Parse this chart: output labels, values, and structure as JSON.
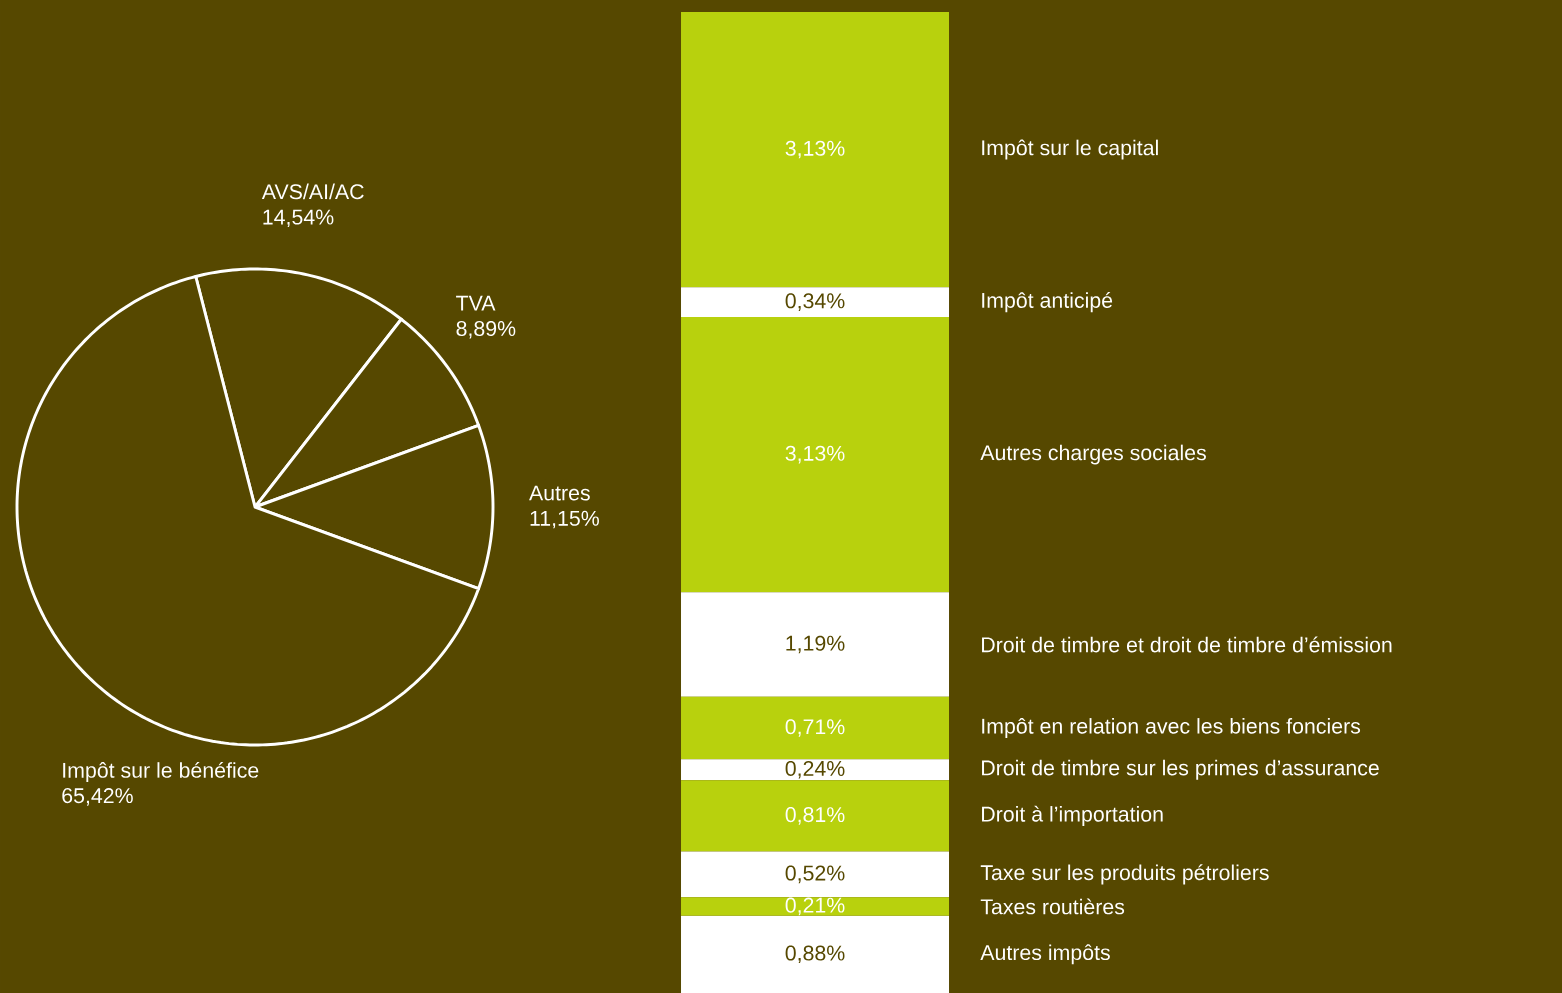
{
  "chart_data": [
    {
      "type": "pie",
      "categories": [
        "AVS/AI/AC",
        "TVA",
        "Autres",
        "Impôt sur le bénéfice"
      ],
      "values": [
        14.54,
        8.89,
        11.15,
        65.42
      ],
      "value_labels": [
        "14,54%",
        "8,89%",
        "11,15%",
        "65,42%"
      ],
      "colors": [
        "#564800",
        "#564800",
        "#564800",
        "#564800"
      ]
    },
    {
      "type": "bar",
      "stacked": true,
      "categories": [
        null
      ],
      "series": [
        {
          "name": "Autres impôts",
          "color": "#ffffff",
          "values": [
            0.88
          ],
          "value_labels": [
            "0,88%"
          ]
        },
        {
          "name": "Taxes routières",
          "color": "#b8d10d",
          "values": [
            0.21
          ],
          "value_labels": [
            "0,21%"
          ]
        },
        {
          "name": "Taxe sur les produits pétroliers",
          "color": "#ffffff",
          "values": [
            0.52
          ],
          "value_labels": [
            "0,52%"
          ]
        },
        {
          "name": "Droit à l’importation",
          "color": "#b8d10d",
          "values": [
            0.81
          ],
          "value_labels": [
            "0,81%"
          ]
        },
        {
          "name": "Droit de timbre sur les primes d’assurance",
          "color": "#ffffff",
          "values": [
            0.24
          ],
          "value_labels": [
            "0,24%"
          ]
        },
        {
          "name": "Impôt en relation avec les biens fonciers",
          "color": "#b8d10d",
          "values": [
            0.71
          ],
          "value_labels": [
            "0,71%"
          ]
        },
        {
          "name": "Droit de timbre et droit de timbre d’émission",
          "color": "#ffffff",
          "values": [
            1.19
          ],
          "value_labels": [
            "1,19%"
          ]
        },
        {
          "name": "Autres charges sociales",
          "color": "#b8d10d",
          "values": [
            3.13
          ],
          "value_labels": [
            "3,13%"
          ]
        },
        {
          "name": "Impôt anticipé",
          "color": "#ffffff",
          "values": [
            0.34
          ],
          "value_labels": [
            "0,34%"
          ]
        },
        {
          "name": "Impôt sur le capital",
          "color": "#b8d10d",
          "values": [
            3.13
          ],
          "value_labels": [
            "3,13%"
          ]
        }
      ]
    }
  ]
}
